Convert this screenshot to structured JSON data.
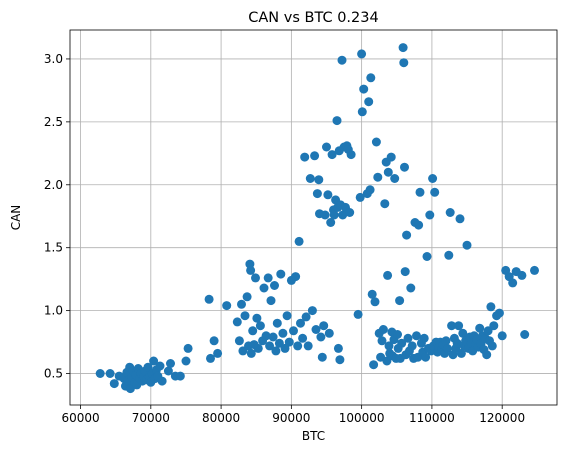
{
  "chart_data": {
    "type": "scatter",
    "title": "CAN vs BTC  0.234",
    "xlabel": "BTC",
    "ylabel": "CAN",
    "xlim": [
      58500,
      127800
    ],
    "ylim": [
      0.25,
      3.23
    ],
    "xticks": [
      60000,
      70000,
      80000,
      90000,
      100000,
      110000,
      120000
    ],
    "xtick_labels": [
      "60000",
      "70000",
      "80000",
      "90000",
      "100000",
      "110000",
      "120000"
    ],
    "yticks": [
      0.5,
      1.0,
      1.5,
      2.0,
      2.5,
      3.0
    ],
    "ytick_labels": [
      "0.5",
      "1.0",
      "1.5",
      "2.0",
      "2.5",
      "3.0"
    ],
    "grid": true,
    "marker_color": "#1f77b4",
    "points": [
      [
        62800,
        0.5
      ],
      [
        64200,
        0.5
      ],
      [
        64800,
        0.42
      ],
      [
        65500,
        0.48
      ],
      [
        66200,
        0.46
      ],
      [
        66400,
        0.4
      ],
      [
        66600,
        0.51
      ],
      [
        66800,
        0.44
      ],
      [
        67000,
        0.55
      ],
      [
        67100,
        0.38
      ],
      [
        67300,
        0.47
      ],
      [
        67500,
        0.52
      ],
      [
        67700,
        0.43
      ],
      [
        67900,
        0.49
      ],
      [
        68000,
        0.41
      ],
      [
        68200,
        0.54
      ],
      [
        68400,
        0.46
      ],
      [
        68600,
        0.5
      ],
      [
        68800,
        0.44
      ],
      [
        69000,
        0.48
      ],
      [
        69200,
        0.52
      ],
      [
        69400,
        0.45
      ],
      [
        69600,
        0.55
      ],
      [
        69800,
        0.47
      ],
      [
        70000,
        0.43
      ],
      [
        70200,
        0.5
      ],
      [
        70400,
        0.6
      ],
      [
        70600,
        0.46
      ],
      [
        70800,
        0.53
      ],
      [
        71000,
        0.48
      ],
      [
        71300,
        0.56
      ],
      [
        71600,
        0.44
      ],
      [
        72500,
        0.52
      ],
      [
        72800,
        0.58
      ],
      [
        73500,
        0.48
      ],
      [
        74200,
        0.48
      ],
      [
        75000,
        0.6
      ],
      [
        75300,
        0.7
      ],
      [
        78300,
        1.09
      ],
      [
        78500,
        0.62
      ],
      [
        79000,
        0.76
      ],
      [
        79500,
        0.66
      ],
      [
        80800,
        1.04
      ],
      [
        82300,
        0.91
      ],
      [
        82600,
        0.76
      ],
      [
        82900,
        1.05
      ],
      [
        83100,
        0.68
      ],
      [
        83400,
        0.96
      ],
      [
        83700,
        1.11
      ],
      [
        83900,
        0.72
      ],
      [
        84100,
        1.37
      ],
      [
        84200,
        1.32
      ],
      [
        84300,
        0.66
      ],
      [
        84500,
        0.84
      ],
      [
        84700,
        0.73
      ],
      [
        84900,
        1.26
      ],
      [
        85100,
        0.94
      ],
      [
        85300,
        0.7
      ],
      [
        85600,
        0.88
      ],
      [
        85900,
        0.76
      ],
      [
        86100,
        1.18
      ],
      [
        86400,
        0.8
      ],
      [
        86700,
        1.26
      ],
      [
        86900,
        0.72
      ],
      [
        87100,
        1.08
      ],
      [
        87400,
        0.79
      ],
      [
        87600,
        1.2
      ],
      [
        87800,
        0.68
      ],
      [
        88000,
        0.9
      ],
      [
        88300,
        0.74
      ],
      [
        88500,
        1.29
      ],
      [
        88800,
        0.82
      ],
      [
        89100,
        0.7
      ],
      [
        89400,
        0.96
      ],
      [
        89700,
        0.75
      ],
      [
        90000,
        1.24
      ],
      [
        90300,
        0.84
      ],
      [
        90600,
        1.27
      ],
      [
        90900,
        0.72
      ],
      [
        91100,
        1.55
      ],
      [
        91300,
        0.9
      ],
      [
        91600,
        0.78
      ],
      [
        91900,
        2.22
      ],
      [
        92100,
        0.95
      ],
      [
        92400,
        0.72
      ],
      [
        92700,
        2.05
      ],
      [
        93000,
        1.0
      ],
      [
        93300,
        2.23
      ],
      [
        93500,
        0.85
      ],
      [
        93700,
        1.93
      ],
      [
        93900,
        2.04
      ],
      [
        94000,
        1.77
      ],
      [
        94200,
        0.79
      ],
      [
        94400,
        0.63
      ],
      [
        94600,
        0.88
      ],
      [
        94800,
        1.76
      ],
      [
        95000,
        2.3
      ],
      [
        95200,
        1.92
      ],
      [
        95400,
        0.82
      ],
      [
        95600,
        1.7
      ],
      [
        95800,
        2.24
      ],
      [
        96000,
        1.8
      ],
      [
        96100,
        1.76
      ],
      [
        96300,
        1.88
      ],
      [
        96500,
        2.51
      ],
      [
        96600,
        1.82
      ],
      [
        96700,
        0.7
      ],
      [
        96800,
        2.27
      ],
      [
        96900,
        0.61
      ],
      [
        97000,
        1.84
      ],
      [
        97200,
        2.99
      ],
      [
        97300,
        1.76
      ],
      [
        97500,
        2.3
      ],
      [
        97700,
        1.82
      ],
      [
        97900,
        2.31
      ],
      [
        98100,
        2.28
      ],
      [
        98300,
        1.78
      ],
      [
        98500,
        2.24
      ],
      [
        99500,
        0.97
      ],
      [
        99800,
        1.9
      ],
      [
        100000,
        3.04
      ],
      [
        100100,
        2.58
      ],
      [
        100300,
        2.76
      ],
      [
        100800,
        1.93
      ],
      [
        101000,
        2.66
      ],
      [
        101200,
        1.96
      ],
      [
        101300,
        2.85
      ],
      [
        101500,
        1.13
      ],
      [
        101700,
        0.57
      ],
      [
        101900,
        1.07
      ],
      [
        102100,
        2.34
      ],
      [
        102300,
        2.06
      ],
      [
        102500,
        0.82
      ],
      [
        102700,
        0.63
      ],
      [
        102900,
        0.76
      ],
      [
        103100,
        0.85
      ],
      [
        103300,
        1.85
      ],
      [
        103500,
        2.18
      ],
      [
        103600,
        0.6
      ],
      [
        103700,
        1.28
      ],
      [
        103800,
        2.1
      ],
      [
        103900,
        0.72
      ],
      [
        104000,
        0.66
      ],
      [
        104200,
        2.22
      ],
      [
        104300,
        0.83
      ],
      [
        104400,
        0.64
      ],
      [
        104600,
        0.77
      ],
      [
        104700,
        2.05
      ],
      [
        104900,
        0.62
      ],
      [
        105100,
        0.81
      ],
      [
        105200,
        0.7
      ],
      [
        105400,
        1.08
      ],
      [
        105500,
        0.62
      ],
      [
        105700,
        0.74
      ],
      [
        105900,
        3.09
      ],
      [
        106000,
        2.97
      ],
      [
        106100,
        2.14
      ],
      [
        106200,
        1.31
      ],
      [
        106300,
        0.65
      ],
      [
        106400,
        1.6
      ],
      [
        106600,
        0.78
      ],
      [
        106800,
        0.68
      ],
      [
        107000,
        1.18
      ],
      [
        107200,
        0.72
      ],
      [
        107400,
        0.62
      ],
      [
        107600,
        1.7
      ],
      [
        107800,
        0.8
      ],
      [
        108000,
        0.63
      ],
      [
        108100,
        1.68
      ],
      [
        108300,
        1.94
      ],
      [
        108500,
        0.74
      ],
      [
        108700,
        0.67
      ],
      [
        108900,
        0.78
      ],
      [
        109100,
        0.63
      ],
      [
        109300,
        1.43
      ],
      [
        109500,
        0.7
      ],
      [
        109700,
        1.76
      ],
      [
        109900,
        0.68
      ],
      [
        110100,
        2.05
      ],
      [
        110200,
        0.72
      ],
      [
        110400,
        1.94
      ],
      [
        110600,
        0.75
      ],
      [
        110800,
        0.67
      ],
      [
        111000,
        0.71
      ],
      [
        111200,
        0.75
      ],
      [
        111400,
        0.69
      ],
      [
        111600,
        0.73
      ],
      [
        111800,
        0.66
      ],
      [
        112000,
        0.76
      ],
      [
        112200,
        0.7
      ],
      [
        112400,
        1.44
      ],
      [
        112600,
        1.78
      ],
      [
        112800,
        0.88
      ],
      [
        113000,
        0.65
      ],
      [
        113200,
        0.78
      ],
      [
        113400,
        0.7
      ],
      [
        113600,
        0.74
      ],
      [
        113800,
        0.88
      ],
      [
        114000,
        1.73
      ],
      [
        114200,
        0.66
      ],
      [
        114400,
        0.82
      ],
      [
        114600,
        0.72
      ],
      [
        114800,
        0.76
      ],
      [
        115000,
        1.52
      ],
      [
        115200,
        0.7
      ],
      [
        115400,
        0.79
      ],
      [
        115600,
        0.74
      ],
      [
        115800,
        0.68
      ],
      [
        116000,
        0.8
      ],
      [
        116200,
        0.73
      ],
      [
        116400,
        0.77
      ],
      [
        116600,
        0.71
      ],
      [
        116800,
        0.86
      ],
      [
        117000,
        0.74
      ],
      [
        117200,
        0.8
      ],
      [
        117400,
        0.69
      ],
      [
        117600,
        0.78
      ],
      [
        117800,
        0.65
      ],
      [
        118000,
        0.84
      ],
      [
        118200,
        0.76
      ],
      [
        118400,
        1.03
      ],
      [
        118600,
        0.72
      ],
      [
        118800,
        0.88
      ],
      [
        119200,
        0.96
      ],
      [
        119600,
        0.98
      ],
      [
        120000,
        0.8
      ],
      [
        120500,
        1.32
      ],
      [
        121000,
        1.27
      ],
      [
        121500,
        1.22
      ],
      [
        122000,
        1.31
      ],
      [
        122800,
        1.28
      ],
      [
        123200,
        0.81
      ],
      [
        124600,
        1.32
      ]
    ]
  }
}
